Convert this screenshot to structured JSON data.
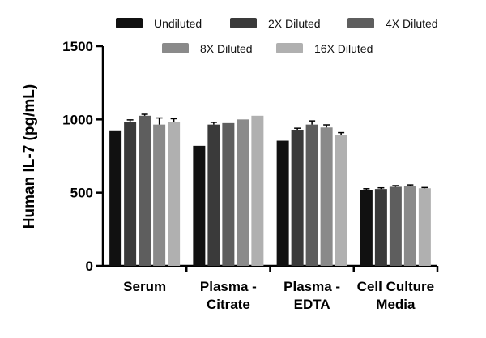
{
  "chart_data": {
    "type": "bar",
    "title": "",
    "xlabel": "",
    "ylabel": "Human  IL-7 (pg/mL)",
    "ylim": [
      0,
      1500
    ],
    "yticks": [
      0,
      500,
      1000,
      1500
    ],
    "grid": false,
    "legend_position": "top",
    "categories": [
      [
        "Serum"
      ],
      [
        "Plasma -",
        "Citrate"
      ],
      [
        "Plasma -",
        "EDTA"
      ],
      [
        "Cell Culture",
        "Media"
      ]
    ],
    "series": [
      {
        "name": "Undiluted",
        "color": "#111111",
        "values": [
          920,
          820,
          855,
          515
        ],
        "errors": [
          0,
          0,
          0,
          12
        ]
      },
      {
        "name": "2X Diluted",
        "color": "#3a3a3a",
        "values": [
          985,
          965,
          930,
          525
        ],
        "errors": [
          12,
          15,
          10,
          8
        ]
      },
      {
        "name": "4X Diluted",
        "color": "#5e5e5e",
        "values": [
          1025,
          975,
          965,
          540
        ],
        "errors": [
          10,
          0,
          25,
          8
        ]
      },
      {
        "name": "8X Diluted",
        "color": "#8a8a8a",
        "values": [
          965,
          1000,
          945,
          545
        ],
        "errors": [
          45,
          0,
          18,
          8
        ]
      },
      {
        "name": "16X Diluted",
        "color": "#b0b0b0",
        "values": [
          980,
          1025,
          895,
          530
        ],
        "errors": [
          25,
          0,
          15,
          5
        ]
      }
    ]
  }
}
